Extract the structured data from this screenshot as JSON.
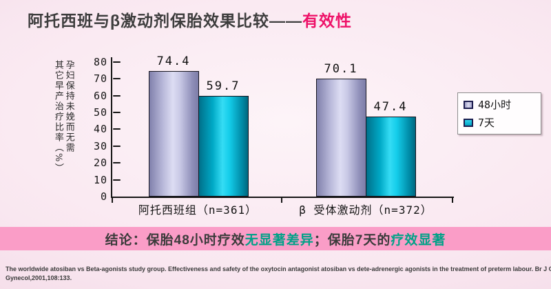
{
  "slide": {
    "title": {
      "main": "阿托西班与β激动剂保胎效果比较——",
      "accent": "有效性"
    },
    "conclusion": {
      "prefix": "结论：保胎48小时疗效",
      "highlight1": "无显著差异",
      "middle": "；保胎7天的",
      "highlight2": "疗效显著"
    },
    "reference": {
      "line1": "The worldwide atosiban vs Beta-agonists study group. Effectiveness and safety of the oxytocin antagonist atosiban vs dete-adrenergic agonists in the treatment of preterm labour. Br J Obstet",
      "line2": "Gynecol,2001,108:133."
    },
    "colors": {
      "title_accent": "#ee1168",
      "conclusion_band": "#fa9dc7",
      "conclusion_highlight": "#00a187",
      "series_48h": "#b9b9da",
      "series_7d": "#14cdea"
    }
  },
  "chart_data": {
    "type": "bar",
    "title": "",
    "xlabel": "",
    "ylabel": "孕妇保持未娩而无需其它早产治疗比率（%）",
    "ylabel_lines": [
      "孕妇保持未娩而无需",
      "其它早产治疗比率（%）"
    ],
    "ylim": [
      0,
      80
    ],
    "ytick_step": 10,
    "grid": false,
    "legend_position": "right",
    "categories": [
      "阿托西班组（n=361）",
      "β 受体激动剂（n=372）"
    ],
    "series": [
      {
        "name": "48小时",
        "color": "#b9b9da",
        "values": [
          74.4,
          70.1
        ]
      },
      {
        "name": "7天",
        "color": "#14cdea",
        "values": [
          59.7,
          47.4
        ]
      }
    ]
  }
}
